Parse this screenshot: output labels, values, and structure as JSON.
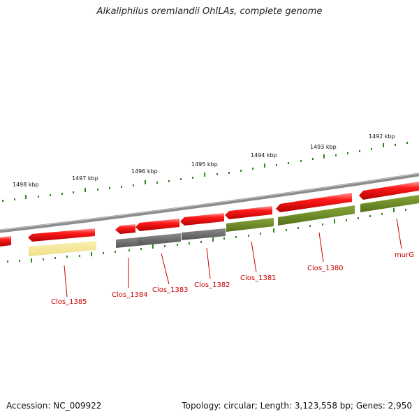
{
  "title": "Alkaliphilus oremlandii OhILAs, complete genome",
  "footer": {
    "accession": "Accession: NC_009922",
    "summary": "Topology: circular; Length: 3,123,558 bp; Genes: 2,950"
  },
  "colors": {
    "backbone": "#8c8c8c",
    "forward_gene": "#ee0000",
    "reverse_gray": "#6f6f6f",
    "reverse_olive": "#6e8b2a",
    "reverse_yellow": "#f4e79a",
    "tick": "#2a8a1a",
    "label": "#cc0000"
  },
  "scale_labels": [
    {
      "text": "1498 kbp",
      "kbp": 1498
    },
    {
      "text": "1497 kbp",
      "kbp": 1497
    },
    {
      "text": "1496 kbp",
      "kbp": 1496
    },
    {
      "text": "1495 kbp",
      "kbp": 1495
    },
    {
      "text": "1494 kbp",
      "kbp": 1494
    },
    {
      "text": "1493 kbp",
      "kbp": 1493
    },
    {
      "text": "1492 kbp",
      "kbp": 1492
    }
  ],
  "gene_labels": [
    {
      "id": "clos1385",
      "text": "Clos_1385"
    },
    {
      "id": "clos1384",
      "text": "Clos_1384"
    },
    {
      "id": "clos1383",
      "text": "Clos_1383"
    },
    {
      "id": "clos1382",
      "text": "Clos_1382"
    },
    {
      "id": "clos1381",
      "text": "Clos_1381"
    },
    {
      "id": "clos1380",
      "text": "Clos_1380"
    },
    {
      "id": "murG",
      "text": "murG"
    }
  ]
}
